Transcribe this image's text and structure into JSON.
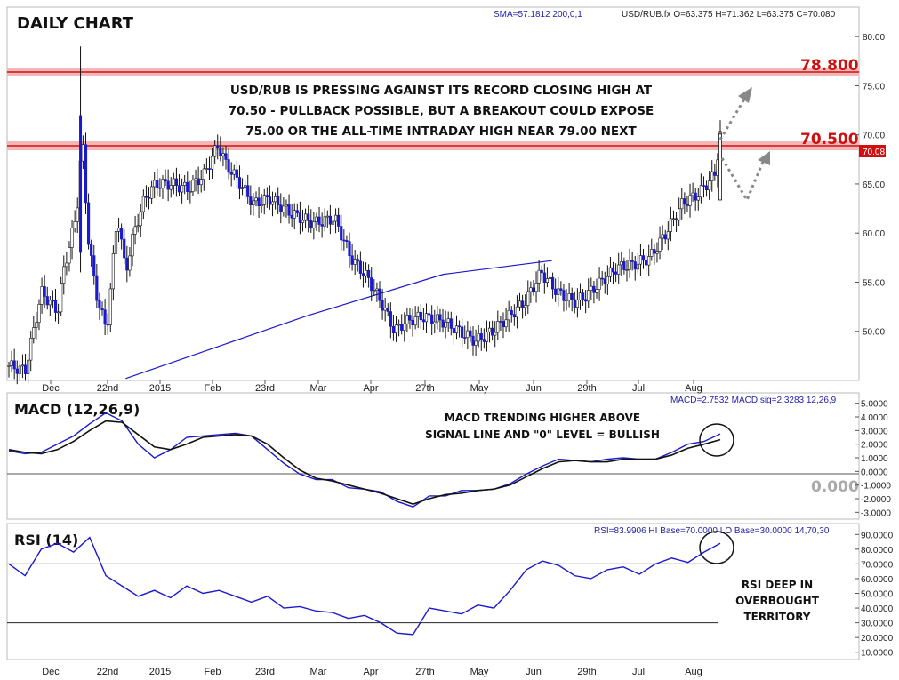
{
  "chart_data": [
    {
      "type": "candlestick",
      "title": "DAILY CHART",
      "symbol_info": "USD/RUB.fx O=63.375 H=71.362 L=63.375 C=70.080",
      "sma_info": "SMA=57.1812  200,0,1",
      "ylim": [
        45,
        83
      ],
      "yticks": [
        "80.00",
        "75.00",
        "70.00",
        "65.00",
        "60.00",
        "55.00",
        "50.00"
      ],
      "x_tick_labels": [
        "Dec",
        "22nd",
        "2015",
        "Feb",
        "23rd",
        "Mar",
        "Apr",
        "27th",
        "May",
        "Jun",
        "29th",
        "Jul",
        "Aug"
      ],
      "levels": [
        {
          "label": "78.800",
          "value": 78.8
        },
        {
          "label": "70.500",
          "value": 70.5
        }
      ],
      "last_price_label": "70.08",
      "annotation": [
        "USD/RUB IS PRESSING AGAINST ITS RECORD CLOSING HIGH AT",
        "70.50 - PULLBACK POSSIBLE, BUT A BREAKOUT COULD EXPOSE",
        "75.00 OR THE ALL-TIME INTRADAY HIGH NEAR 79.00 NEXT"
      ],
      "sma_series": {
        "name": "SMA 200",
        "points": [
          [
            0.215,
            45.2
          ],
          [
            0.55,
            51.6
          ],
          [
            0.8,
            55.8
          ],
          [
            1.0,
            57.2
          ]
        ]
      },
      "close_series": [
        [
          0.0,
          46.5
        ],
        [
          0.03,
          46.0
        ],
        [
          0.06,
          54.0
        ],
        [
          0.09,
          52.0
        ],
        [
          0.1,
          56.0
        ],
        [
          0.125,
          62.0
        ],
        [
          0.135,
          70.0
        ],
        [
          0.145,
          60.0
        ],
        [
          0.16,
          54.0
        ],
        [
          0.18,
          50.0
        ],
        [
          0.2,
          62.0
        ],
        [
          0.215,
          56.0
        ],
        [
          0.23,
          60.0
        ],
        [
          0.25,
          63.5
        ],
        [
          0.27,
          65.0
        ],
        [
          0.3,
          65.0
        ],
        [
          0.33,
          64.5
        ],
        [
          0.36,
          66.0
        ],
        [
          0.385,
          69.0
        ],
        [
          0.4,
          67.0
        ],
        [
          0.42,
          65.5
        ],
        [
          0.45,
          63.0
        ],
        [
          0.48,
          63.5
        ],
        [
          0.52,
          62.0
        ],
        [
          0.56,
          61.0
        ],
        [
          0.6,
          61.5
        ],
        [
          0.63,
          57.5
        ],
        [
          0.66,
          55.5
        ],
        [
          0.69,
          52.5
        ],
        [
          0.71,
          50.0
        ],
        [
          0.73,
          51.0
        ],
        [
          0.76,
          51.5
        ],
        [
          0.8,
          51.0
        ],
        [
          0.83,
          50.0
        ],
        [
          0.86,
          49.0
        ],
        [
          0.89,
          50.0
        ],
        [
          0.92,
          51.5
        ],
        [
          0.95,
          53.0
        ],
        [
          0.98,
          56.0
        ],
        [
          1.01,
          54.0
        ],
        [
          1.04,
          53.0
        ],
        [
          1.06,
          53.5
        ],
        [
          1.09,
          55.0
        ],
        [
          1.12,
          56.5
        ],
        [
          1.15,
          56.8
        ],
        [
          1.18,
          57.5
        ],
        [
          1.21,
          60.0
        ],
        [
          1.24,
          63.0
        ],
        [
          1.27,
          64.0
        ],
        [
          1.3,
          66.0
        ],
        [
          1.31,
          70.08
        ]
      ]
    },
    {
      "type": "line",
      "title": "MACD (12,26,9)",
      "info": "MACD=2.7532  MACD sig=2.3283  12,26,9",
      "ylim": [
        -3.5,
        5.5
      ],
      "yticks": [
        "5.0000",
        "4.0000",
        "3.0000",
        "2.0000",
        "1.0000",
        "0.0000",
        "-1.0000",
        "-2.0000",
        "-3.0000"
      ],
      "zero_label": "0.000",
      "annotation": [
        "MACD TRENDING HIGHER ABOVE",
        "SIGNAL LINE AND \"0\" LEVEL = BULLISH"
      ],
      "series": [
        {
          "name": "MACD",
          "values": [
            1.5,
            1.3,
            1.4,
            2.0,
            2.6,
            3.5,
            4.3,
            3.7,
            2.0,
            1.0,
            1.6,
            2.5,
            2.6,
            2.7,
            2.8,
            2.6,
            1.6,
            0.6,
            -0.2,
            -0.6,
            -0.6,
            -1.2,
            -1.3,
            -1.5,
            -2.2,
            -2.6,
            -1.8,
            -1.8,
            -1.4,
            -1.4,
            -1.3,
            -0.9,
            -0.2,
            0.4,
            0.9,
            0.8,
            0.7,
            0.9,
            1.0,
            0.9,
            0.9,
            1.4,
            2.0,
            2.2,
            2.75
          ]
        },
        {
          "name": "MACD sig",
          "values": [
            1.6,
            1.4,
            1.3,
            1.6,
            2.2,
            3.0,
            3.7,
            3.6,
            2.7,
            1.8,
            1.6,
            2.0,
            2.5,
            2.6,
            2.7,
            2.6,
            2.0,
            1.0,
            0.1,
            -0.5,
            -0.7,
            -1.0,
            -1.3,
            -1.6,
            -2.0,
            -2.4,
            -2.0,
            -1.7,
            -1.6,
            -1.4,
            -1.3,
            -1.0,
            -0.4,
            0.2,
            0.7,
            0.8,
            0.7,
            0.7,
            0.9,
            0.9,
            0.9,
            1.2,
            1.7,
            2.0,
            2.33
          ]
        }
      ]
    },
    {
      "type": "line",
      "title": "RSI (14)",
      "info": "RSI=83.9906  HI Base=70.0000  LO Base=30.0000   14,70,30",
      "ylim": [
        5,
        95
      ],
      "yticks": [
        "90.0000",
        "80.0000",
        "70.0000",
        "60.0000",
        "50.0000",
        "40.0000",
        "30.0000",
        "20.0000",
        "10.0000"
      ],
      "levels": [
        70,
        30
      ],
      "annotation": [
        "RSI DEEP IN",
        "OVERBOUGHT",
        "TERRITORY"
      ],
      "series": [
        {
          "name": "RSI",
          "values": [
            70,
            62,
            80,
            84,
            78,
            88,
            62,
            55,
            48,
            52,
            47,
            55,
            50,
            52,
            48,
            44,
            48,
            40,
            41,
            38,
            37,
            33,
            35,
            30,
            23,
            22,
            40,
            38,
            36,
            42,
            40,
            52,
            66,
            72,
            69,
            62,
            60,
            66,
            68,
            63,
            70,
            74,
            71,
            78,
            84
          ]
        }
      ]
    }
  ]
}
